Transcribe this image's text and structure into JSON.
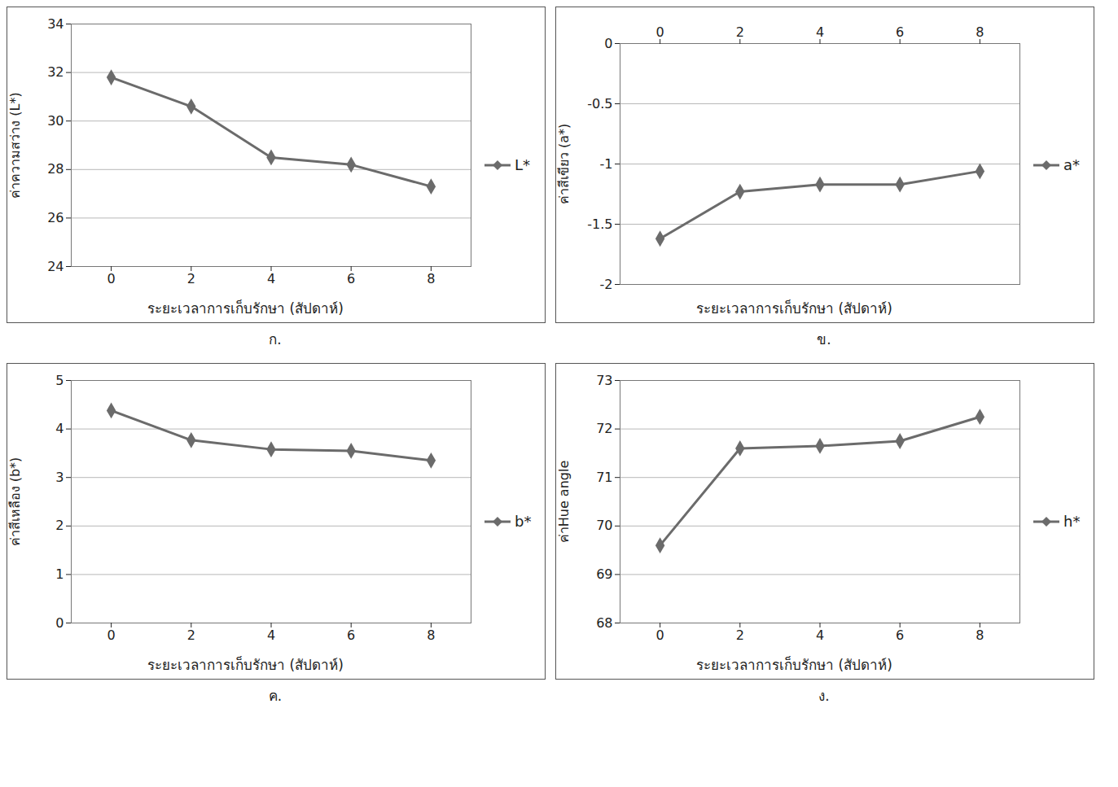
{
  "chart_data": [
    {
      "type": "line",
      "title": "ก.",
      "x_label": "ระยะเวลาการเก็บรักษา (สัปดาห์)",
      "y_label": "ค่าความสว่าง (L*)",
      "x": [
        0,
        2,
        4,
        6,
        8
      ],
      "series": [
        {
          "name": "L*",
          "color": "#6b6b6b",
          "marker": "diamond",
          "values": [
            31.8,
            30.6,
            28.5,
            28.2,
            27.3
          ]
        }
      ],
      "xlim": [
        -1,
        9
      ],
      "xticks": [
        0,
        2,
        4,
        6,
        8
      ],
      "ylim": [
        24,
        34
      ],
      "yticks": [
        24,
        26,
        28,
        30,
        32,
        34
      ],
      "grid": true,
      "legend": "right"
    },
    {
      "type": "line",
      "title": "ข.",
      "x_label": "ระยะเวลาการเก็บรักษา (สัปดาห์)",
      "y_label": "ค่าสีเขียว (a*)",
      "x": [
        0,
        2,
        4,
        6,
        8
      ],
      "series": [
        {
          "name": "a*",
          "color": "#6b6b6b",
          "marker": "diamond",
          "values": [
            -1.62,
            -1.23,
            -1.17,
            -1.17,
            -1.06
          ]
        }
      ],
      "xlim": [
        -1,
        9
      ],
      "xticks": [
        0,
        2,
        4,
        6,
        8
      ],
      "ylim": [
        -2,
        0
      ],
      "yticks": [
        0,
        -0.5,
        -1,
        -1.5,
        -2
      ],
      "grid": true,
      "legend": "right"
    },
    {
      "type": "line",
      "title": "ค.",
      "x_label": "ระยะเวลาการเก็บรักษา (สัปดาห์)",
      "y_label": "ค่าสีเหลือง (b*)",
      "x": [
        0,
        2,
        4,
        6,
        8
      ],
      "series": [
        {
          "name": "b*",
          "color": "#6b6b6b",
          "marker": "diamond",
          "values": [
            4.38,
            3.77,
            3.58,
            3.55,
            3.35
          ]
        }
      ],
      "xlim": [
        -1,
        9
      ],
      "xticks": [
        0,
        2,
        4,
        6,
        8
      ],
      "ylim": [
        0,
        5
      ],
      "yticks": [
        0,
        1,
        2,
        3,
        4,
        5
      ],
      "grid": true,
      "legend": "right"
    },
    {
      "type": "line",
      "title": "ง.",
      "x_label": "ระยะเวลาการเก็บรักษา (สัปดาห์)",
      "y_label": "ค่าHue angle",
      "x": [
        0,
        2,
        4,
        6,
        8
      ],
      "series": [
        {
          "name": "h*",
          "color": "#6b6b6b",
          "marker": "diamond",
          "values": [
            69.6,
            71.6,
            71.65,
            71.75,
            72.25
          ]
        }
      ],
      "xlim": [
        -1,
        9
      ],
      "xticks": [
        0,
        2,
        4,
        6,
        8
      ],
      "ylim": [
        68,
        73
      ],
      "yticks": [
        68,
        69,
        70,
        71,
        72,
        73
      ],
      "grid": true,
      "legend": "right"
    }
  ]
}
